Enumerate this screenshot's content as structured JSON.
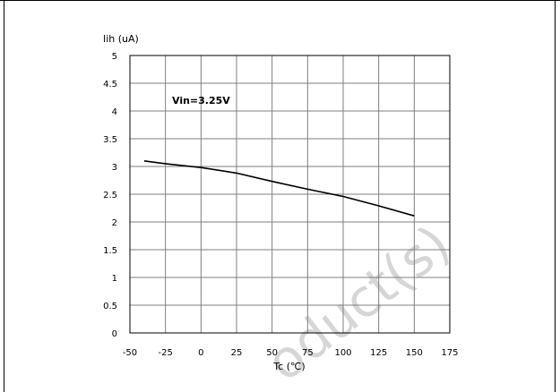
{
  "chart_data": {
    "type": "line",
    "ylabel": "Iih (uA)",
    "xlabel": "Tc (℃)",
    "annotation": "Vin=3.25V",
    "xlim": [
      -50,
      175
    ],
    "ylim": [
      0,
      5
    ],
    "x_ticks": [
      -50,
      -25,
      0,
      25,
      50,
      75,
      100,
      125,
      150,
      175
    ],
    "y_ticks": [
      0,
      0.5,
      1,
      1.5,
      2,
      2.5,
      3,
      3.5,
      4,
      4.5,
      5
    ],
    "x_tick_labels": [
      "-50",
      "-25",
      "0",
      "25",
      "50",
      "75",
      "100",
      "125",
      "150",
      "175"
    ],
    "y_tick_labels": [
      "0",
      "0.5",
      "1",
      "1.5",
      "2",
      "2.5",
      "3",
      "3.5",
      "4",
      "4.5",
      "5"
    ],
    "grid": true,
    "series": [
      {
        "x": [
          -40,
          -25,
          0,
          25,
          50,
          75,
          100,
          125,
          150
        ],
        "y": [
          3.1,
          3.05,
          2.98,
          2.88,
          2.73,
          2.59,
          2.46,
          2.29,
          2.11
        ]
      }
    ],
    "line_color": "#000000"
  },
  "watermark": "oduct(s)"
}
